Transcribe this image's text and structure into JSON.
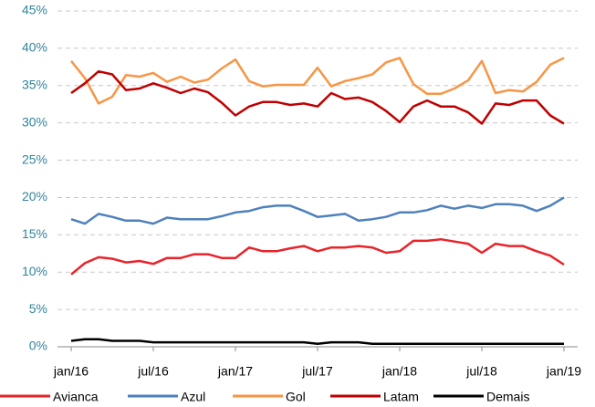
{
  "chart_data": {
    "type": "line",
    "categories": [
      "jan/16",
      null,
      null,
      null,
      null,
      null,
      "jul/16",
      null,
      null,
      null,
      null,
      null,
      "jan/17",
      null,
      null,
      null,
      null,
      null,
      "jul/17",
      null,
      null,
      null,
      null,
      null,
      "jan/18",
      null,
      null,
      null,
      null,
      null,
      "jul/18",
      null,
      null,
      null,
      null,
      null,
      "jan/19"
    ],
    "series": [
      {
        "name": "Avianca",
        "color": "#e8242b",
        "values": [
          9.7,
          11.2,
          12,
          11.8,
          11.3,
          11.5,
          11.1,
          11.9,
          11.9,
          12.4,
          12.4,
          11.9,
          11.9,
          13.3,
          12.8,
          12.8,
          13.2,
          13.5,
          12.8,
          13.3,
          13.3,
          13.5,
          13.3,
          12.6,
          12.8,
          14.2,
          14.2,
          14.4,
          14.1,
          13.8,
          12.6,
          13.8,
          13.5,
          13.5,
          12.8,
          12.2,
          11
        ]
      },
      {
        "name": "Azul",
        "color": "#4f81bd",
        "values": [
          17.1,
          16.5,
          17.8,
          17.4,
          16.9,
          16.9,
          16.5,
          17.3,
          17.1,
          17.1,
          17.1,
          17.5,
          18,
          18.2,
          18.7,
          18.9,
          18.9,
          18.2,
          17.4,
          17.6,
          17.8,
          16.9,
          17.1,
          17.4,
          18,
          18,
          18.3,
          18.9,
          18.5,
          18.9,
          18.6,
          19.1,
          19.1,
          18.9,
          18.2,
          18.9,
          20
        ]
      },
      {
        "name": "Gol",
        "color": "#f79646",
        "values": [
          38.3,
          36,
          32.6,
          33.5,
          36.4,
          36.2,
          36.7,
          35.5,
          36.2,
          35.4,
          35.8,
          37.3,
          38.5,
          35.6,
          34.9,
          35.1,
          35.1,
          35.1,
          37.4,
          34.9,
          35.6,
          36,
          36.5,
          38.1,
          38.7,
          35.2,
          33.9,
          33.9,
          34.6,
          35.7,
          38.3,
          34,
          34.4,
          34.2,
          35.5,
          37.8,
          38.7
        ]
      },
      {
        "name": "Latam",
        "color": "#c00000",
        "values": [
          34,
          35.3,
          36.9,
          36.5,
          34.4,
          34.6,
          35.3,
          34.7,
          34,
          34.6,
          34.1,
          32.7,
          31,
          32.2,
          32.8,
          32.8,
          32.4,
          32.6,
          32.2,
          34,
          33.2,
          33.4,
          32.8,
          31.6,
          30.1,
          32.2,
          33,
          32.2,
          32.2,
          31.4,
          29.9,
          32.6,
          32.4,
          33,
          33,
          31,
          29.9
        ]
      },
      {
        "name": "Demais",
        "color": "#000000",
        "values": [
          0.8,
          1,
          1,
          0.8,
          0.8,
          0.8,
          0.6,
          0.6,
          0.6,
          0.6,
          0.6,
          0.6,
          0.6,
          0.6,
          0.6,
          0.6,
          0.6,
          0.6,
          0.4,
          0.6,
          0.6,
          0.6,
          0.4,
          0.4,
          0.4,
          0.4,
          0.4,
          0.4,
          0.4,
          0.4,
          0.4,
          0.4,
          0.4,
          0.4,
          0.4,
          0.4,
          0.4
        ]
      }
    ],
    "ylim": [
      0,
      45
    ],
    "yticks": [
      {
        "value": 0,
        "label": "0%"
      },
      {
        "value": 5,
        "label": "5%"
      },
      {
        "value": 10,
        "label": "10%"
      },
      {
        "value": 15,
        "label": "15%"
      },
      {
        "value": 20,
        "label": "20%"
      },
      {
        "value": 25,
        "label": "25%"
      },
      {
        "value": 30,
        "label": "30%"
      },
      {
        "value": 35,
        "label": "35%"
      },
      {
        "value": 40,
        "label": "40%"
      },
      {
        "value": 45,
        "label": "45%"
      }
    ],
    "grid": true,
    "legend": "bottom"
  }
}
